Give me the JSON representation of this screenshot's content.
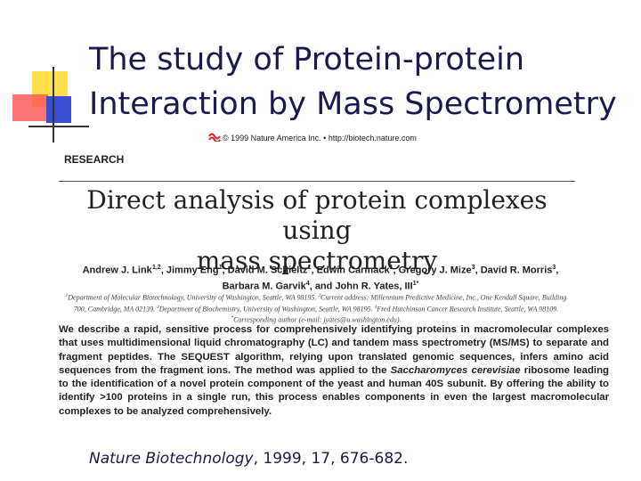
{
  "slide": {
    "title": [
      "The study of Protein-protein",
      "Interaction by Mass Spectrometry"
    ],
    "paper": {
      "copyright": "© 1999 Nature America Inc. • http://biotech.nature.com",
      "section": "RESEARCH",
      "title": [
        "Direct analysis of protein complexes using",
        "mass spectrometry"
      ],
      "authors": [
        {
          "name": "Andrew J. Link",
          "sup": "1,2",
          "sep": ", "
        },
        {
          "name": "Jimmy Eng",
          "sup": "1",
          "sep": ", "
        },
        {
          "name": "David M. Schieltz",
          "sup": "1",
          "sep": ", "
        },
        {
          "name": "Edwin Carmack",
          "sup": "1",
          "sep": ", "
        },
        {
          "name": "Gregory J. Mize",
          "sup": "3",
          "sep": ", "
        },
        {
          "name": "David R. Morris",
          "sup": "3",
          "sep": ","
        },
        {
          "name": "Barbara M. Garvik",
          "sup": "4",
          "sep": ", and "
        },
        {
          "name": "John R. Yates, III",
          "sup": "1*",
          "sep": ""
        }
      ],
      "affiliations": [
        {
          "mark": "1",
          "text": "Department of Molecular Biotechnology, University of Washington, Seattle, WA 98195. "
        },
        {
          "mark": "2",
          "text": "Current address: Millennium Predictive Medicine, Inc., One Kendall Square, Building 700, Cambridge, MA 02139. "
        },
        {
          "mark": "3",
          "text": "Department of Biochemistry, University of Washington, Seattle, WA 98195. "
        },
        {
          "mark": "4",
          "text": "Fred Hutchinson Cancer Research Institute, Seattle, WA 98109. "
        },
        {
          "mark": "*",
          "text": "Corresponding author (e-mail: jyates@u.washington.edu)."
        }
      ],
      "abstract": [
        {
          "text": "We describe a rapid, sensitive process for comprehensively identifying proteins in macromolecular complexes that uses multidimensional liquid chromatography (LC) and tandem mass spectrometry (MS/MS) to separate and fragment peptides. The SEQUEST algorithm, relying upon translated genomic sequences, infers amino acid sequences from the fragment ions. The method was applied to the ",
          "italic": false
        },
        {
          "text": "Saccharomyces cerevisiae",
          "italic": true
        },
        {
          "text": " ribosome leading to the identification of a novel protein component of the yeast and human 40S subunit. By offering the ability to identify >100 proteins in a single run, this process enables components in even the largest macromolecular complexes to be analyzed comprehensively.",
          "italic": false
        }
      ]
    },
    "citation": {
      "journal": "Nature Biotechnology",
      "details": ", 1999, 17, 676-682."
    }
  }
}
